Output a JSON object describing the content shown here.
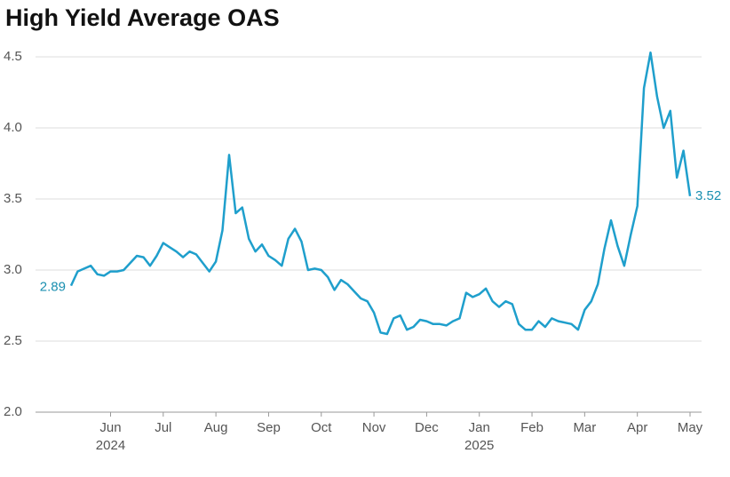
{
  "chart_data": {
    "type": "line",
    "title": "High Yield Average OAS",
    "categories": [
      null,
      null,
      null,
      null,
      null,
      null,
      "Jun\n2024",
      null,
      null,
      null,
      null,
      null,
      null,
      null,
      "Jul",
      null,
      null,
      null,
      null,
      null,
      null,
      null,
      "Aug",
      null,
      null,
      null,
      null,
      null,
      null,
      null,
      "Sep",
      null,
      null,
      null,
      null,
      null,
      null,
      null,
      "Oct",
      null,
      null,
      null,
      null,
      null,
      null,
      null,
      "Nov",
      null,
      null,
      null,
      null,
      null,
      null,
      null,
      "Dec",
      null,
      null,
      null,
      null,
      null,
      null,
      null,
      "Jan\n2025",
      null,
      null,
      null,
      null,
      null,
      null,
      null,
      "Feb",
      null,
      null,
      null,
      null,
      null,
      null,
      null,
      "Mar",
      null,
      null,
      null,
      null,
      null,
      null,
      null,
      "Apr",
      null,
      null,
      null,
      null,
      null,
      null,
      null,
      "May"
    ],
    "series": [
      {
        "name": "High Yield Average OAS",
        "color": "#1f9fcc",
        "values": [
          2.89,
          2.99,
          3.01,
          3.03,
          2.97,
          2.96,
          2.99,
          2.99,
          3.0,
          3.05,
          3.1,
          3.09,
          3.03,
          3.1,
          3.19,
          3.16,
          3.13,
          3.09,
          3.13,
          3.11,
          3.05,
          2.99,
          3.06,
          3.28,
          3.81,
          3.4,
          3.44,
          3.22,
          3.13,
          3.18,
          3.1,
          3.07,
          3.03,
          3.22,
          3.29,
          3.2,
          3.0,
          3.01,
          3.0,
          2.95,
          2.86,
          2.93,
          2.9,
          2.85,
          2.8,
          2.78,
          2.7,
          2.56,
          2.55,
          2.66,
          2.68,
          2.58,
          2.6,
          2.65,
          2.64,
          2.62,
          2.62,
          2.61,
          2.64,
          2.66,
          2.84,
          2.81,
          2.83,
          2.87,
          2.78,
          2.74,
          2.78,
          2.76,
          2.62,
          2.58,
          2.58,
          2.64,
          2.6,
          2.66,
          2.64,
          2.63,
          2.62,
          2.58,
          2.72,
          2.78,
          2.9,
          3.15,
          3.35,
          3.17,
          3.03,
          3.25,
          3.45,
          4.28,
          4.53,
          4.22,
          4.0,
          4.12,
          3.65,
          3.84,
          3.52
        ]
      }
    ],
    "ylim": [
      2.0,
      4.5
    ],
    "yticks": [
      {
        "value": 2,
        "label": "2.0"
      },
      2.5,
      {
        "value": 3,
        "label": "3.0"
      },
      3.5,
      {
        "value": 4,
        "label": "4.0"
      },
      4.5
    ],
    "grid": true,
    "end_labels": true
  }
}
